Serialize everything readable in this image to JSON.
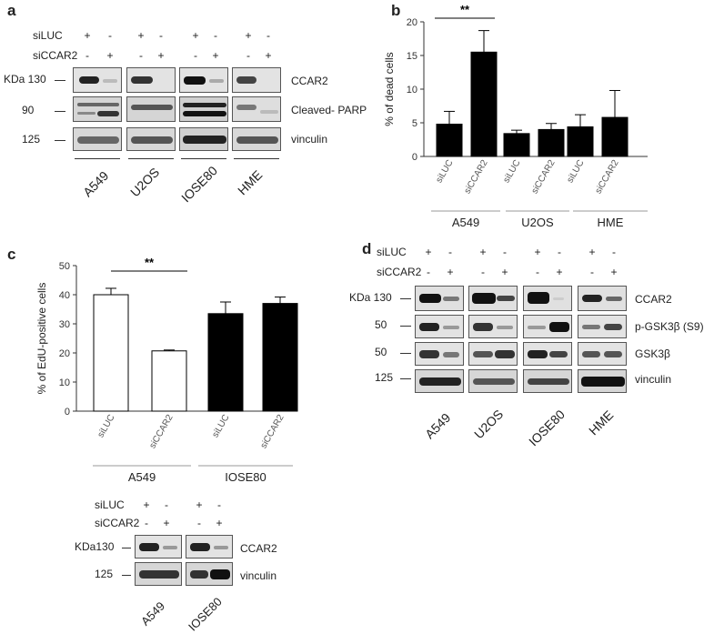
{
  "panels": {
    "a": "a",
    "b": "b",
    "c": "c",
    "d": "d"
  },
  "labels": {
    "siLUC": "siLUC",
    "siCCAR2": "siCCAR2",
    "plus": "+",
    "minus": "-",
    "kda130": "KDa 130",
    "kda130c": "KDa130",
    "mw90": "90",
    "mw50": "50",
    "mw125": "125",
    "ccar2": "CCAR2",
    "cleaved_parp": "Cleaved- PARP",
    "vinculin": "vinculin",
    "pgsk": "p-GSK3β (S9)",
    "gsk": "GSK3β",
    "a549": "A549",
    "u2os": "U2OS",
    "iose80": "IOSE80",
    "hme": "HME",
    "sig": "**"
  },
  "chart_data": [
    {
      "type": "bar",
      "panel": "b",
      "ylabel": "% of dead cells",
      "ylim": [
        0,
        20
      ],
      "yticks": [
        0,
        5,
        10,
        15,
        20
      ],
      "categories": [
        "siLUC",
        "siCCAR2",
        "siLUC",
        "siCCAR2",
        "siLUC",
        "siCCAR2"
      ],
      "groups": [
        "A549",
        "U2OS",
        "HME"
      ],
      "values": [
        4.8,
        15.5,
        3.4,
        4.0,
        4.4,
        5.8
      ],
      "errors": [
        1.9,
        3.2,
        0.5,
        0.9,
        1.8,
        4.0
      ],
      "significance": "**",
      "fill": "#000000"
    },
    {
      "type": "bar",
      "panel": "c",
      "ylabel": "% of EdU-positive cells",
      "ylim": [
        0,
        50
      ],
      "yticks": [
        0,
        10,
        20,
        30,
        40,
        50
      ],
      "categories": [
        "siLUC",
        "siCCAR2",
        "siLUC",
        "siCCAR2"
      ],
      "groups": [
        "A549",
        "IOSE80"
      ],
      "values": [
        40,
        20.7,
        33.5,
        37
      ],
      "errors": [
        2.2,
        0.3,
        4.0,
        2.2
      ],
      "fills": [
        "#ffffff",
        "#ffffff",
        "#000000",
        "#000000"
      ],
      "significance": "**"
    }
  ]
}
